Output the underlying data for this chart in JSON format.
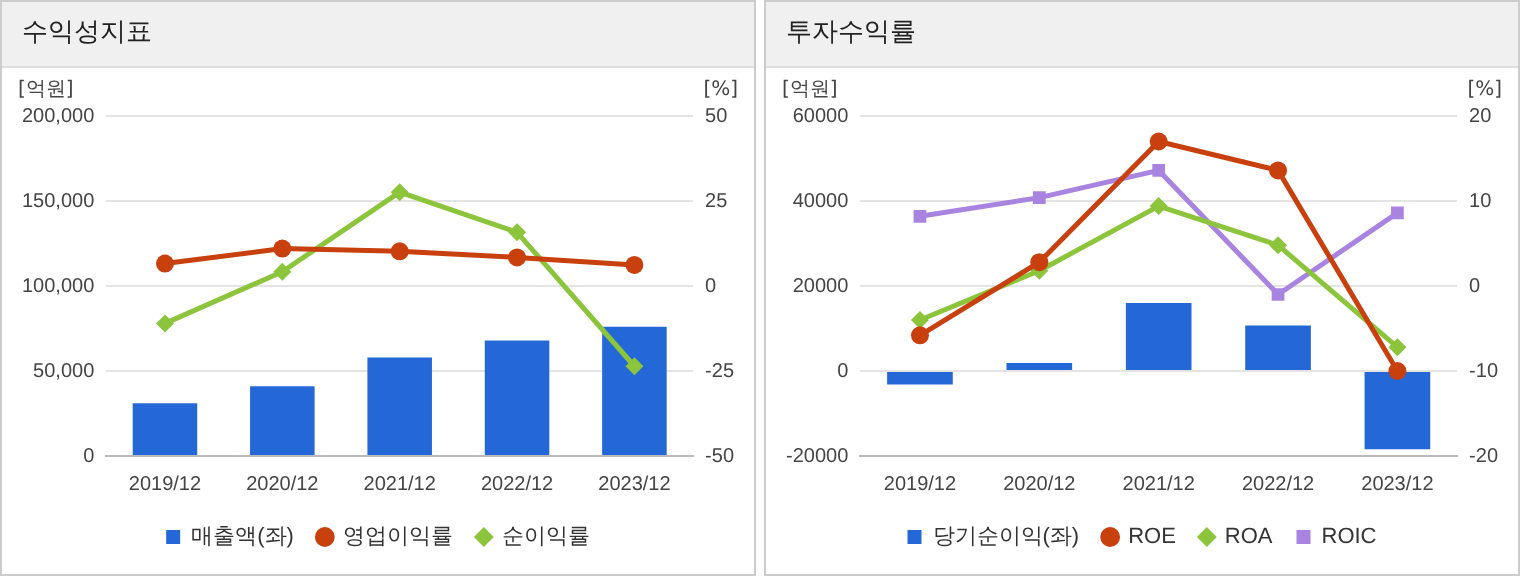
{
  "chart_data": [
    {
      "type": "bar",
      "title": "수익성지표",
      "ylabel": "[억원]",
      "y2label": "[%]",
      "categories": [
        "2019/12",
        "2020/12",
        "2021/12",
        "2022/12",
        "2023/12"
      ],
      "series": [
        {
          "name": "매출액(좌)",
          "color": "#2468d8",
          "values": [
            31000,
            41000,
            58000,
            68000,
            76000
          ]
        },
        {
          "name": "영업이익률",
          "type": "line",
          "axis": "y2",
          "marker": "circle",
          "color": "#c8400e",
          "values": [
            6.6,
            11,
            10.2,
            8.4,
            6.2
          ]
        },
        {
          "name": "순이익률",
          "type": "line",
          "axis": "y2",
          "marker": "diamond",
          "color": "#8cc43c",
          "values": [
            -11,
            4.2,
            27.6,
            15.8,
            -23.6
          ]
        }
      ],
      "ylim": [
        0,
        200000
      ],
      "yticks": [
        0,
        {
          "value": 50000,
          "label": "50,000"
        },
        {
          "value": 100000,
          "label": "100,000"
        },
        {
          "value": 150000,
          "label": "150,000"
        },
        {
          "value": 200000,
          "label": "200,000"
        }
      ],
      "y2lim": [
        -50,
        50
      ],
      "y2ticks": [
        -50,
        -25,
        0,
        25,
        50
      ],
      "grid": "y",
      "legend": "bottom"
    },
    {
      "type": "bar",
      "title": "투자수익률",
      "ylabel": "[억원]",
      "y2label": "[%]",
      "categories": [
        "2019/12",
        "2020/12",
        "2021/12",
        "2022/12",
        "2023/12"
      ],
      "series": [
        {
          "name": "당기순이익(좌)",
          "color": "#2468d8",
          "values": [
            -3200,
            1900,
            16000,
            10700,
            -18400
          ]
        },
        {
          "name": "ROE",
          "type": "line",
          "axis": "y2",
          "marker": "circle",
          "color": "#c8400e",
          "values": [
            -5.8,
            2.8,
            17,
            13.6,
            -10
          ]
        },
        {
          "name": "ROA",
          "type": "line",
          "axis": "y2",
          "marker": "diamond",
          "color": "#8cc43c",
          "values": [
            -4,
            1.8,
            9.4,
            4.8,
            -7.2
          ]
        },
        {
          "name": "ROIC",
          "type": "line",
          "axis": "y2",
          "marker": "square",
          "color": "#a884e0",
          "values": [
            8.2,
            10.4,
            13.6,
            -1,
            8.6
          ]
        }
      ],
      "ylim": [
        -20000,
        60000
      ],
      "yticks": [
        -20000,
        0,
        20000,
        40000,
        60000
      ],
      "y2lim": [
        -20,
        20
      ],
      "y2ticks": [
        -20,
        -10,
        0,
        10,
        20
      ],
      "grid": "y",
      "legend": "bottom"
    }
  ]
}
